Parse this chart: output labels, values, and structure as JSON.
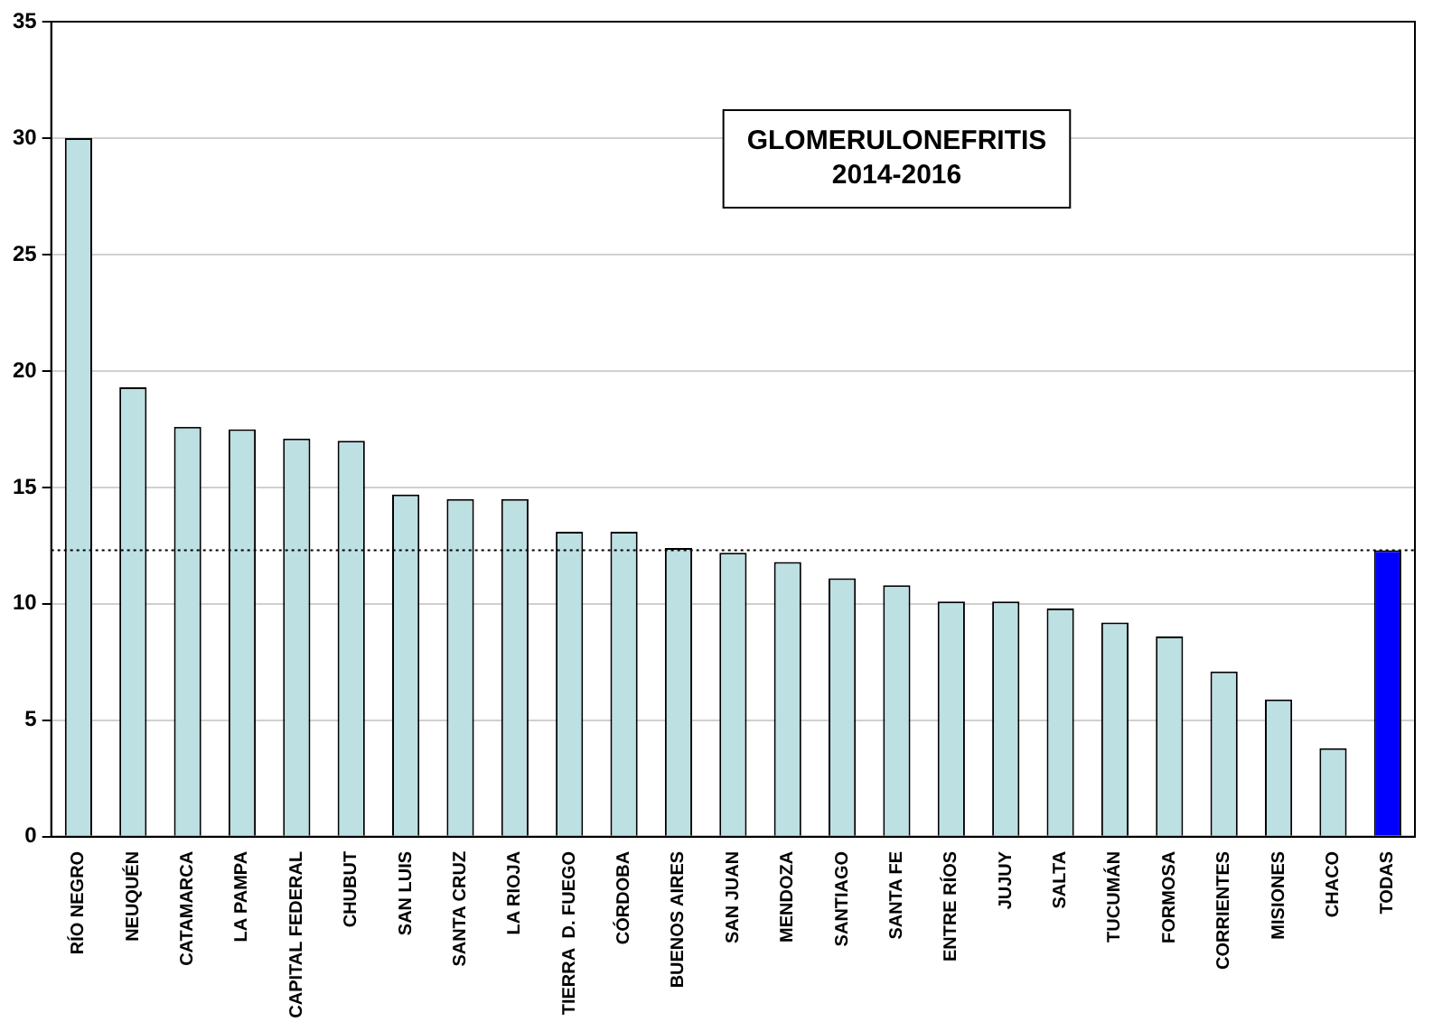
{
  "chart_data": {
    "type": "bar",
    "title": "GLOMERULONEFRITIS",
    "subtitle": "2014-2016",
    "categories": [
      "RÍO NEGRO",
      "NEUQUÉN",
      "CATAMARCA",
      "LA PAMPA",
      "CAPITAL FEDERAL",
      "CHUBUT",
      "SAN LUIS",
      "SANTA CRUZ",
      "LA RIOJA",
      "TIERRA  D. FUEGO",
      "CÓRDOBA",
      "BUENOS AIRES",
      "SAN JUAN",
      "MENDOZA",
      "SANTIAGO",
      "SANTA FE",
      "ENTRE RÍOS",
      "JUJUY",
      "SALTA",
      "TUCUMÁN",
      "FORMOSA",
      "CORRIENTES",
      "MISIONES",
      "CHACO",
      "TODAS"
    ],
    "values": [
      30.0,
      19.3,
      17.6,
      17.5,
      17.1,
      17.0,
      14.7,
      14.5,
      14.5,
      13.1,
      13.1,
      12.4,
      12.2,
      11.8,
      11.1,
      10.8,
      10.1,
      10.1,
      9.8,
      9.2,
      8.6,
      7.1,
      5.9,
      3.8,
      12.3
    ],
    "colors": [
      "#bde0e2",
      "#bde0e2",
      "#bde0e2",
      "#bde0e2",
      "#bde0e2",
      "#bde0e2",
      "#bde0e2",
      "#bde0e2",
      "#bde0e2",
      "#bde0e2",
      "#bde0e2",
      "#bde0e2",
      "#bde0e2",
      "#bde0e2",
      "#bde0e2",
      "#bde0e2",
      "#bde0e2",
      "#bde0e2",
      "#bde0e2",
      "#bde0e2",
      "#bde0e2",
      "#bde0e2",
      "#bde0e2",
      "#bde0e2",
      "#0000ff"
    ],
    "ylim": [
      0,
      35
    ],
    "yticks": [
      0,
      5,
      10,
      15,
      20,
      25,
      30,
      35
    ],
    "grid": "y",
    "legend": false,
    "ref_lines": [
      {
        "axis": "y",
        "value": 12.3,
        "color": "#000000",
        "line_style": "dotted"
      }
    ]
  }
}
